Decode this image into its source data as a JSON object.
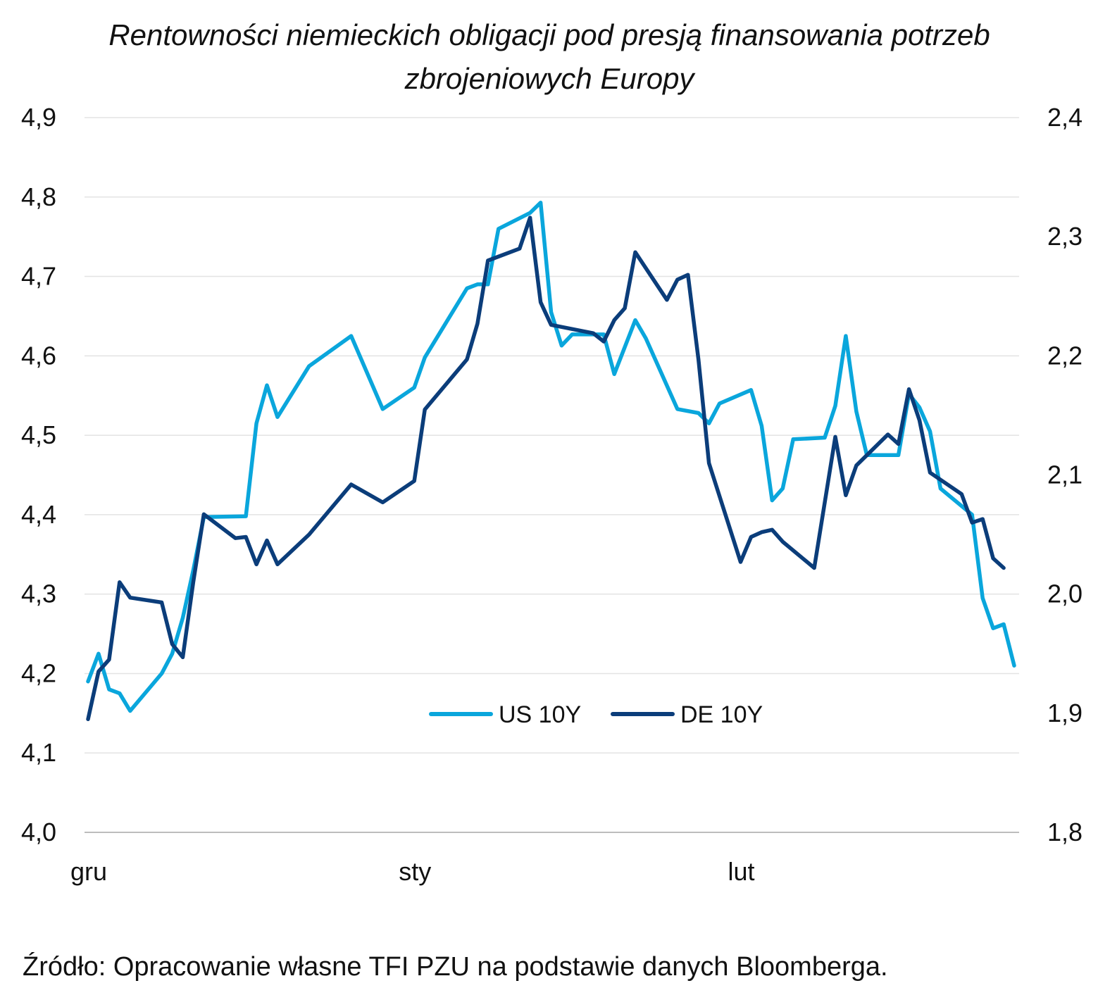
{
  "chart_data": {
    "type": "line",
    "title_lines": [
      "Rentowności niemieckich obligacji pod presją finansowania potrzeb",
      "zbrojeniowych Europy"
    ],
    "x_axis": {
      "labels": [
        {
          "text": "gru",
          "at": 0
        },
        {
          "text": "sty",
          "at": 31
        },
        {
          "text": "lut",
          "at": 62
        }
      ],
      "domain": [
        0,
        88
      ]
    },
    "y_left": {
      "min": 4.0,
      "max": 4.9,
      "step": 0.1,
      "ticks": [
        "4,0",
        "4,1",
        "4,2",
        "4,3",
        "4,4",
        "4,5",
        "4,6",
        "4,7",
        "4,8",
        "4,9"
      ]
    },
    "y_right": {
      "min": 1.8,
      "max": 2.4,
      "step": 0.1,
      "ticks": [
        "1,8",
        "1,9",
        "2,0",
        "2,1",
        "2,2",
        "2,3",
        "2,4"
      ]
    },
    "grid": true,
    "legend": "inside-bottom-center",
    "series": [
      {
        "name": "US 10Y",
        "axis": "left",
        "color": "#0aa6dc",
        "points": [
          [
            0,
            4.19
          ],
          [
            1,
            4.225
          ],
          [
            2,
            4.18
          ],
          [
            3,
            4.175
          ],
          [
            4,
            4.153
          ],
          [
            7,
            4.2
          ],
          [
            8,
            4.225
          ],
          [
            9,
            4.27
          ],
          [
            10,
            4.33
          ],
          [
            11,
            4.397
          ],
          [
            15,
            4.398
          ],
          [
            16,
            4.515
          ],
          [
            17,
            4.563
          ],
          [
            18,
            4.523
          ],
          [
            21,
            4.587
          ],
          [
            25,
            4.625
          ],
          [
            28,
            4.533
          ],
          [
            31,
            4.56
          ],
          [
            32,
            4.598
          ],
          [
            36,
            4.685
          ],
          [
            37,
            4.69
          ],
          [
            38,
            4.69
          ],
          [
            39,
            4.76
          ],
          [
            42,
            4.78
          ],
          [
            43,
            4.793
          ],
          [
            44,
            4.655
          ],
          [
            45,
            4.613
          ],
          [
            46,
            4.627
          ],
          [
            49,
            4.627
          ],
          [
            50,
            4.577
          ],
          [
            52,
            4.645
          ],
          [
            53,
            4.622
          ],
          [
            56,
            4.533
          ],
          [
            58,
            4.528
          ],
          [
            59,
            4.515
          ],
          [
            60,
            4.54
          ],
          [
            63,
            4.557
          ],
          [
            64,
            4.512
          ],
          [
            65,
            4.418
          ],
          [
            66,
            4.433
          ],
          [
            67,
            4.495
          ],
          [
            70,
            4.497
          ],
          [
            71,
            4.537
          ],
          [
            72,
            4.625
          ],
          [
            73,
            4.53
          ],
          [
            74,
            4.475
          ],
          [
            77,
            4.475
          ],
          [
            78,
            4.552
          ],
          [
            79,
            4.535
          ],
          [
            80,
            4.505
          ],
          [
            81,
            4.433
          ],
          [
            84,
            4.4
          ],
          [
            85,
            4.295
          ],
          [
            86,
            4.257
          ],
          [
            87,
            4.262
          ],
          [
            88,
            4.21
          ]
        ]
      },
      {
        "name": "DE 10Y",
        "axis": "right",
        "color": "#0b3d7a",
        "points": [
          [
            0,
            1.895
          ],
          [
            1,
            1.935
          ],
          [
            2,
            1.945
          ],
          [
            3,
            2.01
          ],
          [
            4,
            1.997
          ],
          [
            7,
            1.993
          ],
          [
            8,
            1.958
          ],
          [
            9,
            1.947
          ],
          [
            10,
            2.01
          ],
          [
            11,
            2.067
          ],
          [
            14,
            2.047
          ],
          [
            15,
            2.048
          ],
          [
            16,
            2.025
          ],
          [
            17,
            2.045
          ],
          [
            18,
            2.025
          ],
          [
            21,
            2.05
          ],
          [
            25,
            2.092
          ],
          [
            28,
            2.077
          ],
          [
            31,
            2.095
          ],
          [
            32,
            2.155
          ],
          [
            36,
            2.197
          ],
          [
            37,
            2.227
          ],
          [
            38,
            2.28
          ],
          [
            41,
            2.29
          ],
          [
            42,
            2.316
          ],
          [
            43,
            2.245
          ],
          [
            44,
            2.226
          ],
          [
            48,
            2.219
          ],
          [
            49,
            2.212
          ],
          [
            50,
            2.23
          ],
          [
            51,
            2.24
          ],
          [
            52,
            2.287
          ],
          [
            55,
            2.247
          ],
          [
            56,
            2.264
          ],
          [
            57,
            2.268
          ],
          [
            58,
            2.197
          ],
          [
            59,
            2.11
          ],
          [
            62,
            2.027
          ],
          [
            63,
            2.048
          ],
          [
            64,
            2.052
          ],
          [
            65,
            2.054
          ],
          [
            66,
            2.044
          ],
          [
            69,
            2.022
          ],
          [
            71,
            2.132
          ],
          [
            72,
            2.083
          ],
          [
            73,
            2.108
          ],
          [
            76,
            2.134
          ],
          [
            77,
            2.126
          ],
          [
            78,
            2.172
          ],
          [
            79,
            2.146
          ],
          [
            80,
            2.102
          ],
          [
            83,
            2.084
          ],
          [
            84,
            2.06
          ],
          [
            85,
            2.063
          ],
          [
            86,
            2.03
          ],
          [
            87,
            2.022
          ]
        ]
      }
    ],
    "source": "Źródło: Opracowanie własne TFI PZU na podstawie danych Bloomberga."
  }
}
